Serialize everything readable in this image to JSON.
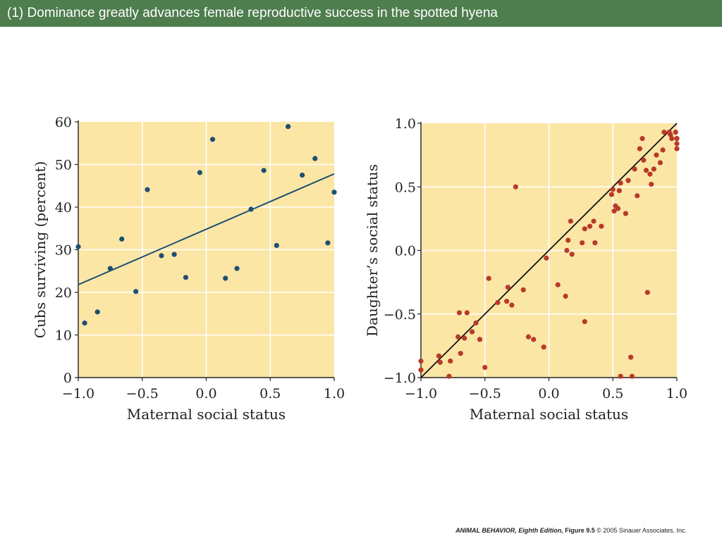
{
  "slide": {
    "title": "(1) Dominance greatly advances female reproductive success in the spotted hyena",
    "footer_book": "ANIMAL BEHAVIOR, Eighth Edition,",
    "footer_figure": "Figure 9.5",
    "footer_copyright": "© 2005 Sinauer Associates, Inc."
  },
  "colors": {
    "title_bg": "#4e7d4e",
    "plot_bg": "#fce6a6",
    "grid": "#ffffff",
    "left_points": "#1d5070",
    "left_line": "#1d5070",
    "right_points": "#b83a2a",
    "right_line": "#111111"
  },
  "chart_data": [
    {
      "type": "scatter",
      "title": "",
      "xlabel": "Maternal social status",
      "ylabel": "Cubs surviving (percent)",
      "xlim": [
        -1.0,
        1.0
      ],
      "ylim": [
        0,
        60
      ],
      "xticks": [
        "−1.0",
        "−0.5",
        "0.0",
        "0.5",
        "1.0"
      ],
      "yticks": [
        "0",
        "10",
        "20",
        "30",
        "40",
        "50",
        "60"
      ],
      "grid": true,
      "trendline": {
        "x": [
          -1.0,
          1.0
        ],
        "y": [
          21.8,
          47.8
        ]
      },
      "points": [
        [
          -1.0,
          30.7
        ],
        [
          -0.95,
          12.8
        ],
        [
          -0.85,
          15.4
        ],
        [
          -0.75,
          25.6
        ],
        [
          -0.66,
          32.5
        ],
        [
          -0.55,
          20.2
        ],
        [
          -0.46,
          44.1
        ],
        [
          -0.35,
          28.6
        ],
        [
          -0.25,
          28.9
        ],
        [
          -0.16,
          23.5
        ],
        [
          -0.05,
          48.1
        ],
        [
          0.05,
          55.9
        ],
        [
          0.15,
          23.3
        ],
        [
          0.24,
          25.6
        ],
        [
          0.35,
          39.5
        ],
        [
          0.45,
          48.6
        ],
        [
          0.55,
          31.0
        ],
        [
          0.64,
          58.9
        ],
        [
          0.75,
          47.5
        ],
        [
          0.85,
          51.4
        ],
        [
          0.95,
          31.6
        ],
        [
          1.0,
          43.5
        ]
      ]
    },
    {
      "type": "scatter",
      "title": "",
      "xlabel": "Maternal social status",
      "ylabel": "Daughter’s social status",
      "xlim": [
        -1.0,
        1.0
      ],
      "ylim": [
        -1.0,
        1.0
      ],
      "xticks": [
        "−1.0",
        "−0.5",
        "0.0",
        "0.5",
        "1.0"
      ],
      "yticks": [
        "−1.0",
        "−0.5",
        "0.0",
        "0.5",
        "1.0"
      ],
      "grid": true,
      "trendline": {
        "x": [
          -1.0,
          1.0
        ],
        "y": [
          -1.0,
          1.0
        ]
      },
      "points": [
        [
          -1.0,
          -0.87
        ],
        [
          -1.0,
          -0.94
        ],
        [
          -0.86,
          -0.83
        ],
        [
          -0.85,
          -0.88
        ],
        [
          -0.78,
          -0.99
        ],
        [
          -0.77,
          -0.87
        ],
        [
          -0.71,
          -0.68
        ],
        [
          -0.7,
          -0.49
        ],
        [
          -0.69,
          -0.81
        ],
        [
          -0.66,
          -0.69
        ],
        [
          -0.64,
          -0.49
        ],
        [
          -0.6,
          -0.64
        ],
        [
          -0.57,
          -0.57
        ],
        [
          -0.54,
          -0.7
        ],
        [
          -0.5,
          -0.92
        ],
        [
          -0.47,
          -0.22
        ],
        [
          -0.4,
          -0.41
        ],
        [
          -0.33,
          -0.4
        ],
        [
          -0.32,
          -0.29
        ],
        [
          -0.29,
          -0.43
        ],
        [
          -0.26,
          0.5
        ],
        [
          -0.2,
          -0.31
        ],
        [
          -0.16,
          -0.68
        ],
        [
          -0.12,
          -0.7
        ],
        [
          -0.04,
          -0.76
        ],
        [
          -0.02,
          -0.06
        ],
        [
          0.07,
          -0.27
        ],
        [
          0.13,
          -0.36
        ],
        [
          0.14,
          0.0
        ],
        [
          0.15,
          0.08
        ],
        [
          0.17,
          0.23
        ],
        [
          0.18,
          -0.03
        ],
        [
          0.26,
          0.06
        ],
        [
          0.28,
          0.17
        ],
        [
          0.28,
          -0.56
        ],
        [
          0.32,
          0.19
        ],
        [
          0.35,
          0.23
        ],
        [
          0.36,
          0.06
        ],
        [
          0.41,
          0.19
        ],
        [
          0.49,
          0.44
        ],
        [
          0.5,
          0.48
        ],
        [
          0.51,
          0.31
        ],
        [
          0.52,
          0.35
        ],
        [
          0.54,
          0.33
        ],
        [
          0.55,
          0.47
        ],
        [
          0.56,
          0.53
        ],
        [
          0.56,
          -0.99
        ],
        [
          0.6,
          0.29
        ],
        [
          0.62,
          0.55
        ],
        [
          0.64,
          -0.84
        ],
        [
          0.65,
          -0.99
        ],
        [
          0.67,
          0.64
        ],
        [
          0.69,
          0.43
        ],
        [
          0.71,
          0.8
        ],
        [
          0.73,
          0.88
        ],
        [
          0.74,
          0.71
        ],
        [
          0.76,
          0.63
        ],
        [
          0.77,
          -0.33
        ],
        [
          0.79,
          0.6
        ],
        [
          0.8,
          0.52
        ],
        [
          0.82,
          0.64
        ],
        [
          0.84,
          0.75
        ],
        [
          0.87,
          0.69
        ],
        [
          0.89,
          0.79
        ],
        [
          0.9,
          0.93
        ],
        [
          0.94,
          0.93
        ],
        [
          0.95,
          0.91
        ],
        [
          0.96,
          0.88
        ],
        [
          0.99,
          0.93
        ],
        [
          1.0,
          0.88
        ],
        [
          1.0,
          0.84
        ],
        [
          1.0,
          0.8
        ]
      ]
    }
  ]
}
